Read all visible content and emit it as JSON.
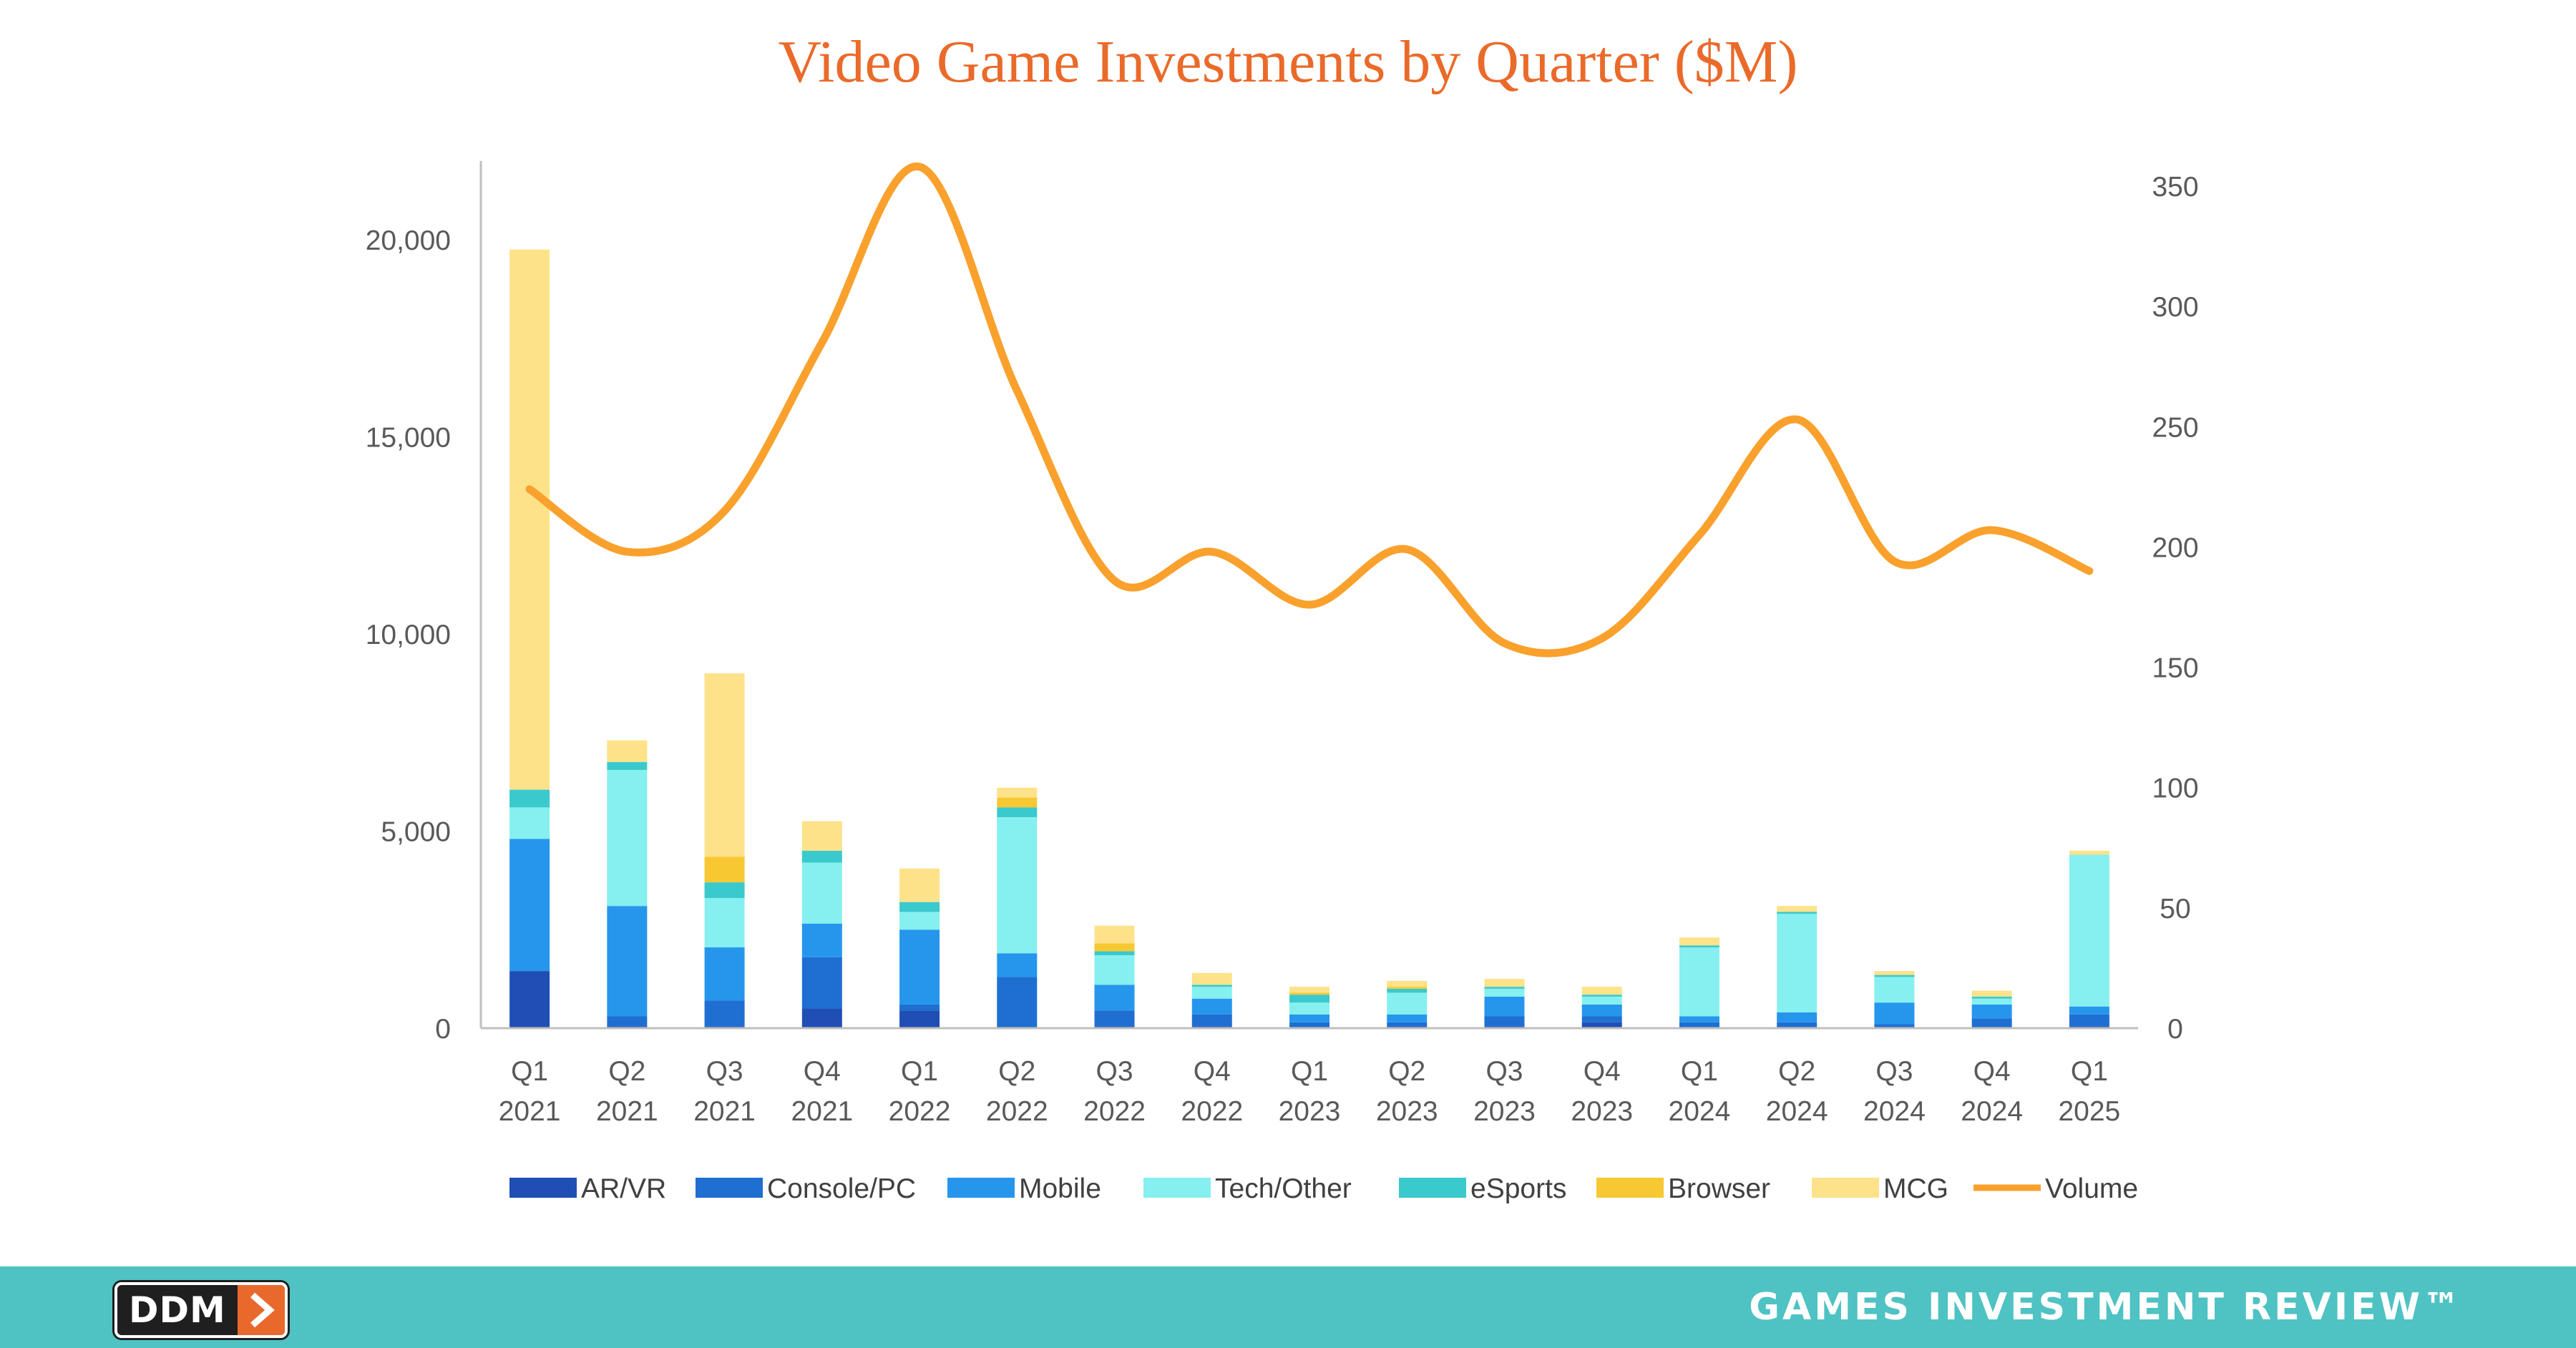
{
  "chart_data": {
    "type": "bar",
    "title": "Video Game Investments by Quarter ($M)",
    "categories": [
      [
        "Q1",
        "2021"
      ],
      [
        "Q2",
        "2021"
      ],
      [
        "Q3",
        "2021"
      ],
      [
        "Q4",
        "2021"
      ],
      [
        "Q1",
        "2022"
      ],
      [
        "Q2",
        "2022"
      ],
      [
        "Q3",
        "2022"
      ],
      [
        "Q4",
        "2022"
      ],
      [
        "Q1",
        "2023"
      ],
      [
        "Q2",
        "2023"
      ],
      [
        "Q3",
        "2023"
      ],
      [
        "Q4",
        "2023"
      ],
      [
        "Q1",
        "2024"
      ],
      [
        "Q2",
        "2024"
      ],
      [
        "Q3",
        "2024"
      ],
      [
        "Q4",
        "2024"
      ],
      [
        "Q1",
        "2025"
      ]
    ],
    "stacked": true,
    "series": [
      {
        "name": "AR/VR",
        "color": "#1f4fb5",
        "values": [
          1450,
          50,
          50,
          500,
          450,
          0,
          50,
          50,
          0,
          50,
          50,
          150,
          0,
          0,
          0,
          0,
          50
        ]
      },
      {
        "name": "Console/PC",
        "color": "#1e6fd1",
        "values": [
          0,
          250,
          650,
          1300,
          150,
          1300,
          400,
          300,
          150,
          100,
          250,
          150,
          150,
          150,
          100,
          250,
          300
        ]
      },
      {
        "name": "Mobile",
        "color": "#2696ec",
        "values": [
          3350,
          2800,
          1350,
          850,
          1900,
          600,
          650,
          400,
          200,
          200,
          500,
          300,
          150,
          250,
          550,
          350,
          200
        ]
      },
      {
        "name": "Tech/Other",
        "color": "#85f0ef",
        "values": [
          800,
          3450,
          1250,
          1550,
          450,
          3450,
          750,
          300,
          300,
          550,
          200,
          200,
          1750,
          2500,
          650,
          150,
          3850
        ]
      },
      {
        "name": "eSports",
        "color": "#3ac9cc",
        "values": [
          450,
          200,
          400,
          300,
          250,
          250,
          100,
          50,
          200,
          100,
          50,
          50,
          50,
          50,
          50,
          50,
          0
        ]
      },
      {
        "name": "Browser",
        "color": "#f8c832",
        "values": [
          0,
          0,
          650,
          0,
          0,
          250,
          200,
          0,
          50,
          50,
          0,
          0,
          0,
          0,
          0,
          0,
          0
        ]
      },
      {
        "name": "MCG",
        "color": "#fde28a",
        "values": [
          13700,
          550,
          4650,
          750,
          850,
          250,
          450,
          300,
          150,
          150,
          200,
          200,
          200,
          150,
          100,
          150,
          100
        ]
      }
    ],
    "line_series": {
      "name": "Volume",
      "color": "#f9a12c",
      "axis": "secondary",
      "values": [
        224,
        198,
        215,
        285,
        358,
        265,
        186,
        198,
        176,
        199,
        160,
        162,
        205,
        253,
        194,
        207,
        190
      ]
    },
    "y_axis": {
      "ylim": [
        0,
        22000
      ],
      "ticks": [
        0,
        5000,
        10000,
        15000,
        20000
      ],
      "tick_labels": [
        "0",
        "5,000",
        "10,000",
        "15,000",
        "20,000"
      ]
    },
    "y2_axis": {
      "ylim": [
        0,
        360
      ],
      "ticks": [
        0,
        50,
        100,
        150,
        200,
        250,
        300,
        350
      ],
      "tick_labels": [
        "0",
        "50",
        "100",
        "150",
        "200",
        "250",
        "300",
        "350"
      ]
    },
    "legend": {
      "position": "bottom",
      "entries": [
        "AR/VR",
        "Console/PC",
        "Mobile",
        "Tech/Other",
        "eSports",
        "Browser",
        "MCG",
        "Volume"
      ]
    },
    "grid": false
  },
  "footer": {
    "logo_text": "DDM",
    "brand": "GAMES INVESTMENT REVIEW™",
    "background_color": "#4fc2c3"
  }
}
